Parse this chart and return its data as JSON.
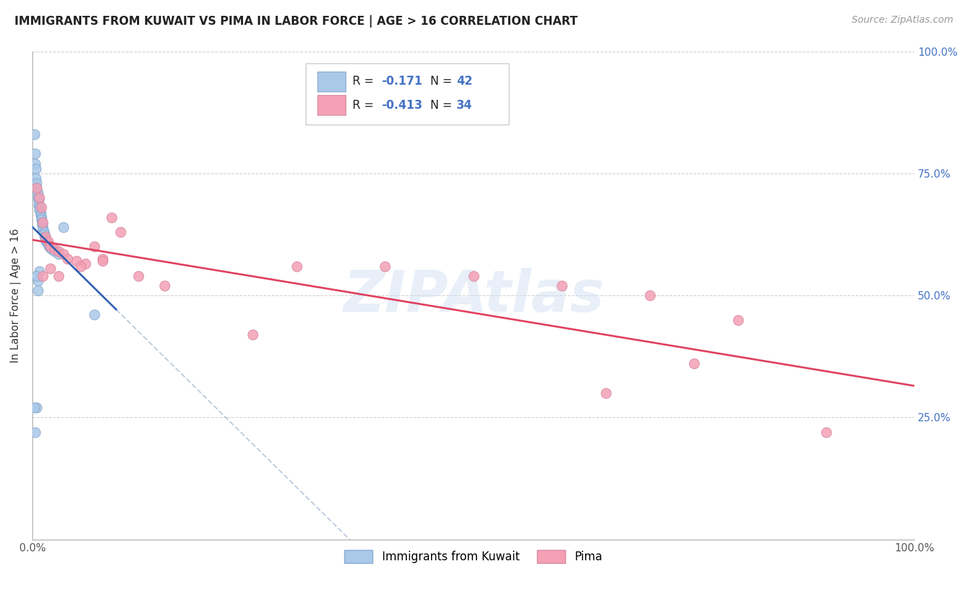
{
  "title": "IMMIGRANTS FROM KUWAIT VS PIMA IN LABOR FORCE | AGE > 16 CORRELATION CHART",
  "source": "Source: ZipAtlas.com",
  "ylabel": "In Labor Force | Age > 16",
  "xlim": [
    0,
    1.0
  ],
  "ylim": [
    0,
    1.0
  ],
  "xticks": [
    0.0,
    1.0
  ],
  "xticklabels": [
    "0.0%",
    "100.0%"
  ],
  "yticks": [
    0.0,
    0.25,
    0.5,
    0.75,
    1.0
  ],
  "yticklabels_right": [
    "",
    "25.0%",
    "50.0%",
    "75.0%",
    "100.0%"
  ],
  "blue_color": "#aac8e8",
  "pink_color": "#f4a0b5",
  "blue_line_color": "#3060b0",
  "pink_line_color": "#e04060",
  "dash_color": "#b0c4d8",
  "watermark": "ZIPAtlas",
  "kuwait_x": [
    0.002,
    0.003,
    0.003,
    0.004,
    0.004,
    0.005,
    0.005,
    0.006,
    0.006,
    0.007,
    0.007,
    0.008,
    0.008,
    0.009,
    0.009,
    0.01,
    0.01,
    0.011,
    0.011,
    0.012,
    0.012,
    0.013,
    0.013,
    0.014,
    0.015,
    0.016,
    0.017,
    0.018,
    0.019,
    0.02,
    0.022,
    0.025,
    0.03,
    0.035,
    0.005,
    0.002,
    0.003,
    0.006,
    0.008,
    0.07,
    0.005,
    0.006
  ],
  "kuwait_y": [
    0.83,
    0.79,
    0.77,
    0.76,
    0.74,
    0.73,
    0.72,
    0.71,
    0.7,
    0.695,
    0.685,
    0.68,
    0.675,
    0.67,
    0.665,
    0.66,
    0.655,
    0.65,
    0.645,
    0.64,
    0.635,
    0.63,
    0.625,
    0.62,
    0.615,
    0.61,
    0.608,
    0.605,
    0.6,
    0.598,
    0.595,
    0.59,
    0.585,
    0.64,
    0.27,
    0.27,
    0.22,
    0.53,
    0.55,
    0.46,
    0.54,
    0.51
  ],
  "pima_x": [
    0.005,
    0.008,
    0.01,
    0.012,
    0.015,
    0.018,
    0.02,
    0.025,
    0.03,
    0.035,
    0.04,
    0.05,
    0.06,
    0.07,
    0.08,
    0.09,
    0.1,
    0.12,
    0.15,
    0.25,
    0.3,
    0.4,
    0.5,
    0.6,
    0.65,
    0.7,
    0.75,
    0.8,
    0.9,
    0.012,
    0.02,
    0.03,
    0.055,
    0.08
  ],
  "pima_y": [
    0.72,
    0.7,
    0.68,
    0.65,
    0.62,
    0.61,
    0.6,
    0.595,
    0.59,
    0.585,
    0.575,
    0.57,
    0.565,
    0.6,
    0.575,
    0.66,
    0.63,
    0.54,
    0.52,
    0.42,
    0.56,
    0.56,
    0.54,
    0.52,
    0.3,
    0.5,
    0.36,
    0.45,
    0.22,
    0.54,
    0.555,
    0.54,
    0.56,
    0.57
  ],
  "background_color": "#ffffff"
}
